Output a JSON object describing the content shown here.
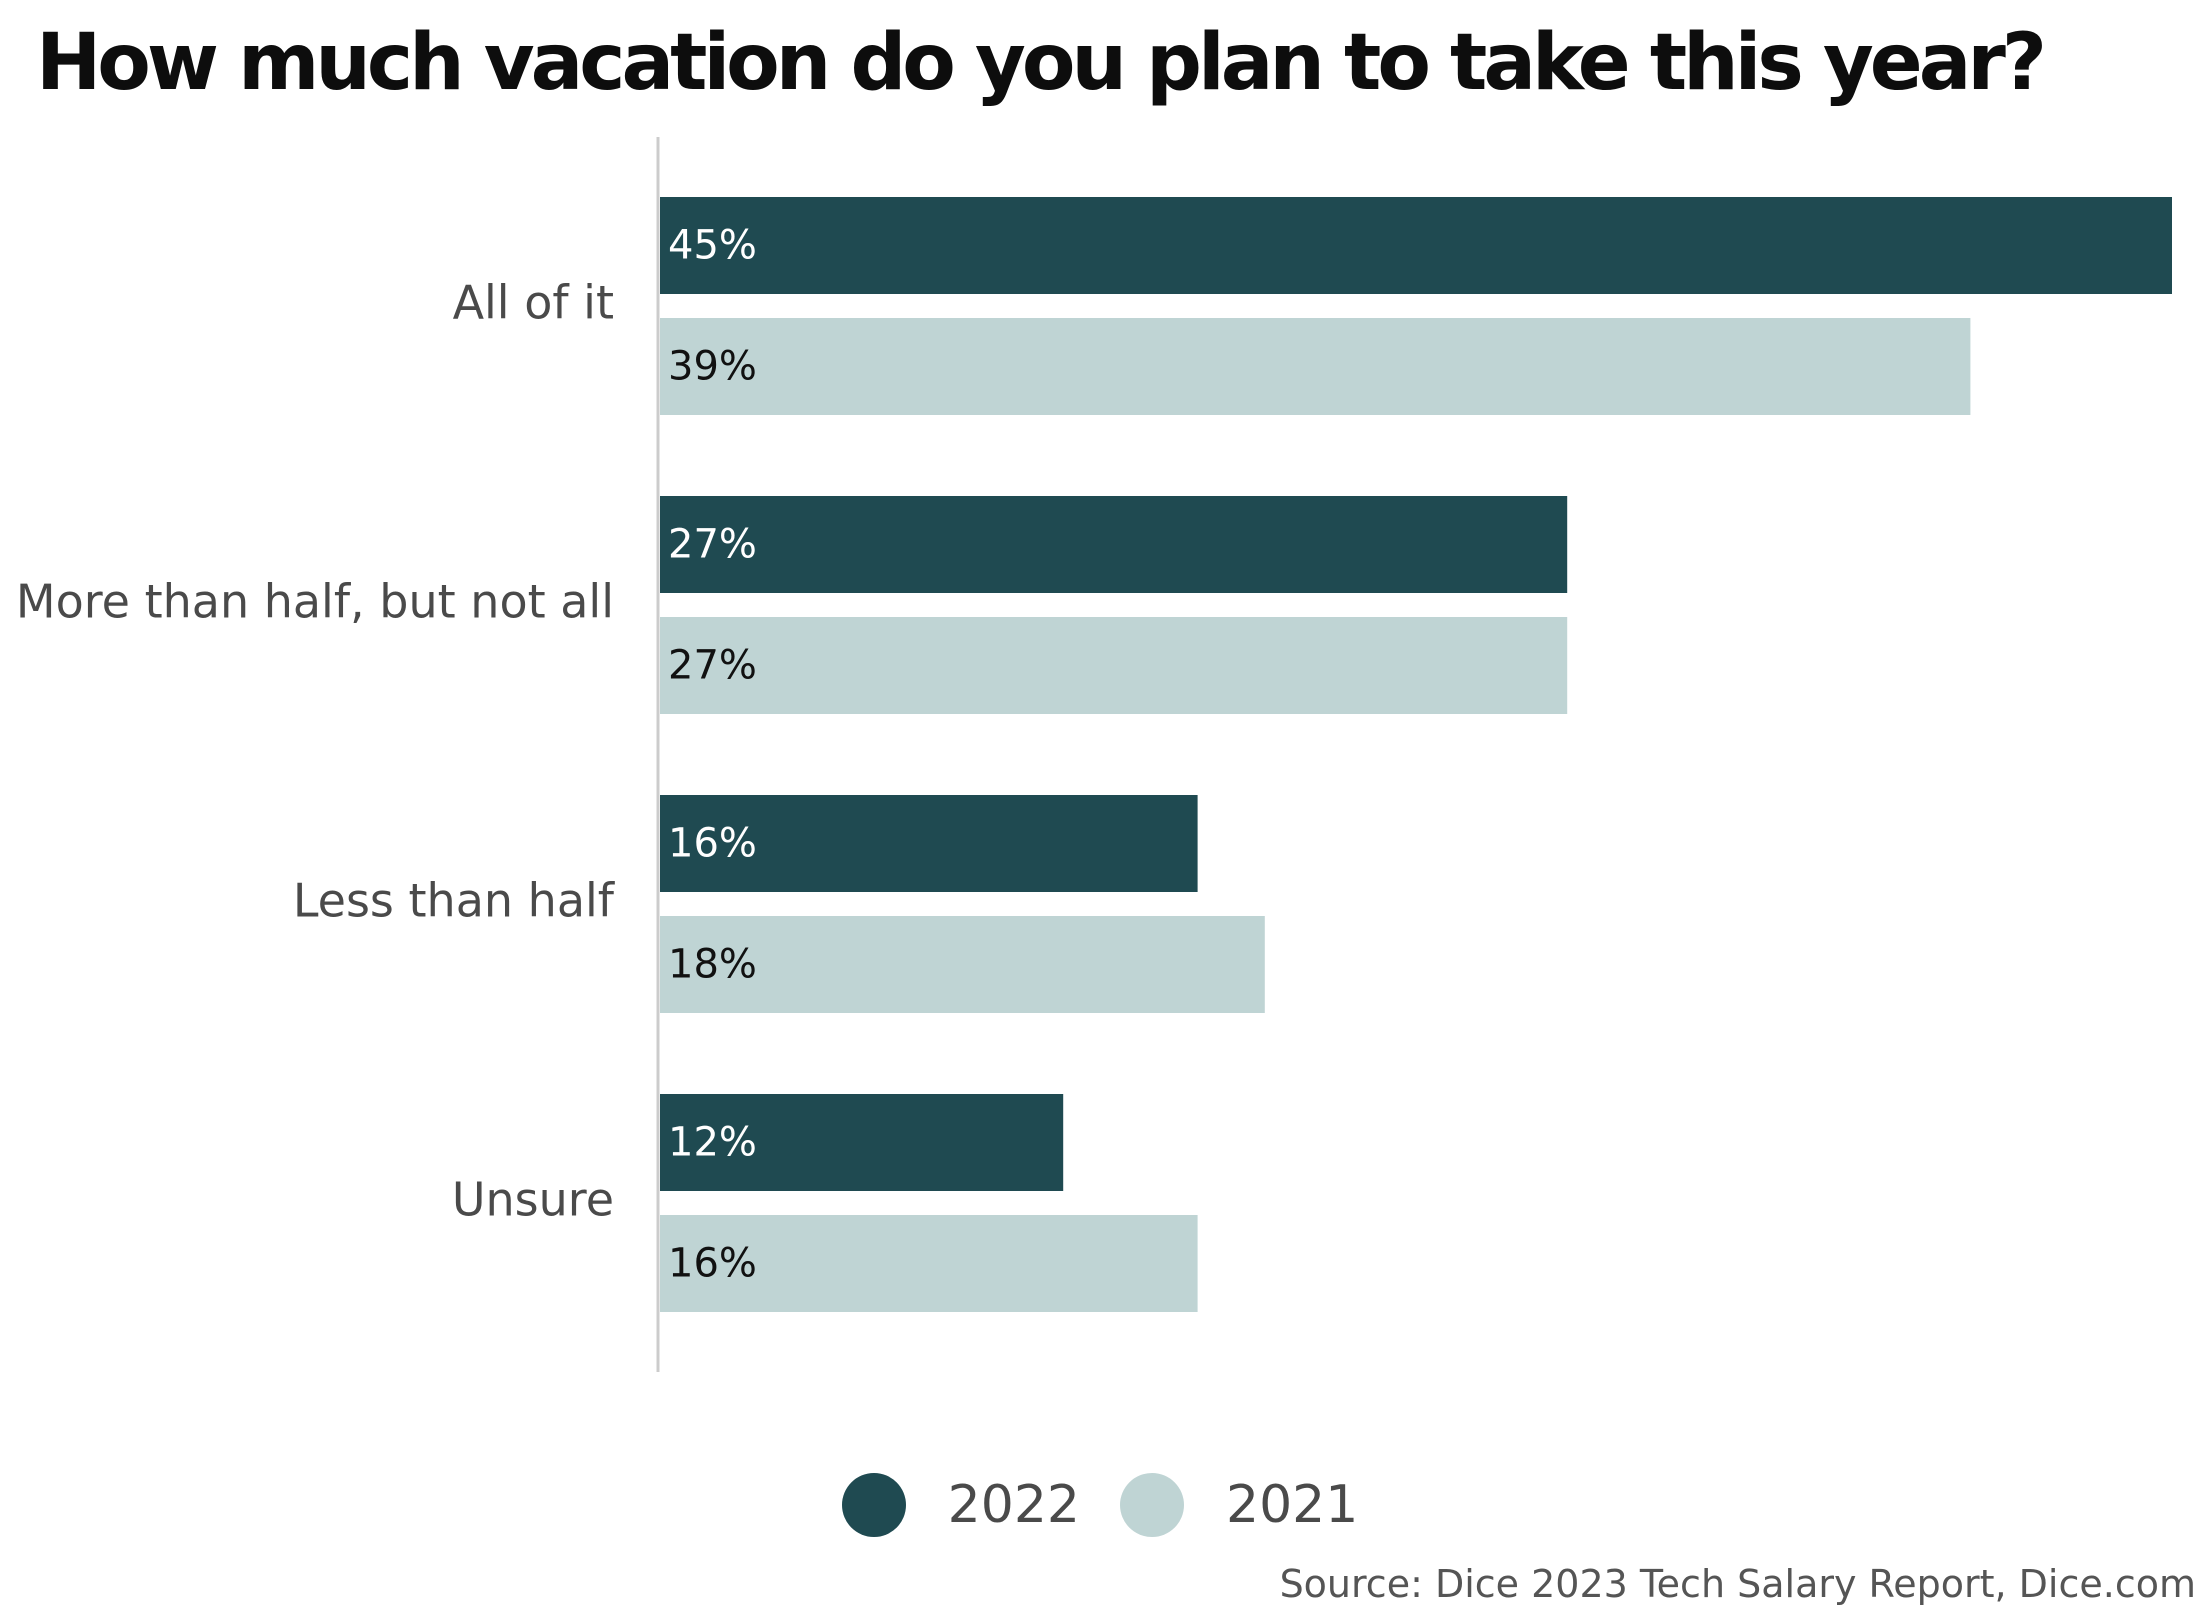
{
  "chart_data": {
    "type": "bar",
    "orientation": "horizontal",
    "title": "How much vacation do you plan to take this year?",
    "categories": [
      "All of it",
      "More than half, but not all",
      "Less than half",
      "Unsure"
    ],
    "series": [
      {
        "name": "2022",
        "color": "#1f4a51",
        "label_color": "#ffffff",
        "values": [
          45,
          27,
          16,
          12
        ],
        "labels": [
          "45%",
          "27%",
          "16%",
          "12%"
        ]
      },
      {
        "name": "2021",
        "color": "#bfd4d4",
        "label_color": "#111111",
        "values": [
          39,
          27,
          18,
          16
        ],
        "labels": [
          "39%",
          "27%",
          "18%",
          "16%"
        ]
      }
    ],
    "xlim": [
      0,
      45
    ],
    "grid": false,
    "legend_position": "bottom-center",
    "source": "Source: Dice 2023 Tech Salary Report, Dice.com"
  }
}
